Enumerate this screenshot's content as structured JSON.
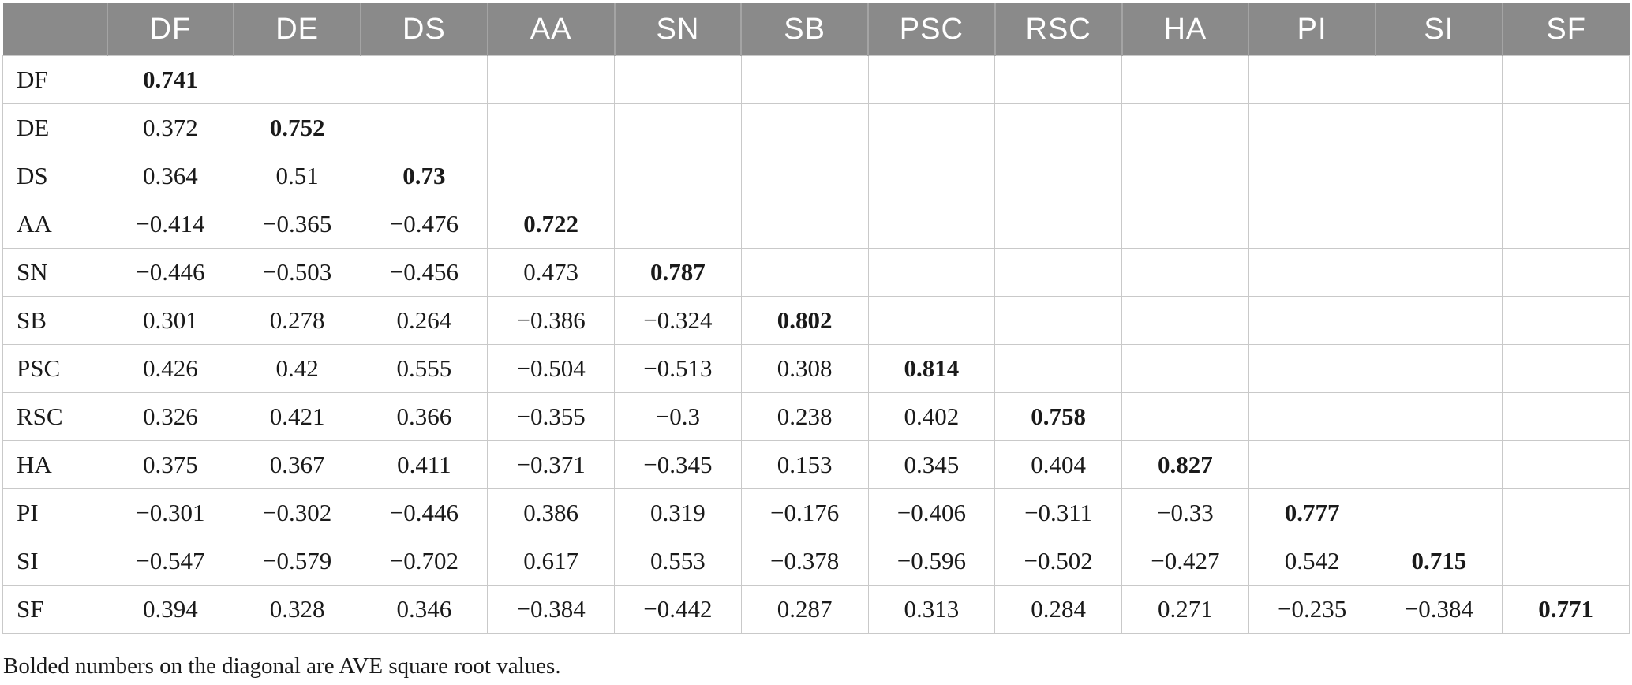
{
  "table": {
    "header": [
      "",
      "DF",
      "DE",
      "DS",
      "AA",
      "SN",
      "SB",
      "PSC",
      "RSC",
      "HA",
      "PI",
      "SI",
      "SF"
    ],
    "rows": [
      {
        "label": "DF",
        "cells": [
          "0.741",
          "",
          "",
          "",
          "",
          "",
          "",
          "",
          "",
          "",
          "",
          ""
        ]
      },
      {
        "label": "DE",
        "cells": [
          "0.372",
          "0.752",
          "",
          "",
          "",
          "",
          "",
          "",
          "",
          "",
          "",
          ""
        ]
      },
      {
        "label": "DS",
        "cells": [
          "0.364",
          "0.51",
          "0.73",
          "",
          "",
          "",
          "",
          "",
          "",
          "",
          "",
          ""
        ]
      },
      {
        "label": "AA",
        "cells": [
          "−0.414",
          "−0.365",
          "−0.476",
          "0.722",
          "",
          "",
          "",
          "",
          "",
          "",
          "",
          ""
        ]
      },
      {
        "label": "SN",
        "cells": [
          "−0.446",
          "−0.503",
          "−0.456",
          "0.473",
          "0.787",
          "",
          "",
          "",
          "",
          "",
          "",
          ""
        ]
      },
      {
        "label": "SB",
        "cells": [
          "0.301",
          "0.278",
          "0.264",
          "−0.386",
          "−0.324",
          "0.802",
          "",
          "",
          "",
          "",
          "",
          ""
        ]
      },
      {
        "label": "PSC",
        "cells": [
          "0.426",
          "0.42",
          "0.555",
          "−0.504",
          "−0.513",
          "0.308",
          "0.814",
          "",
          "",
          "",
          "",
          ""
        ]
      },
      {
        "label": "RSC",
        "cells": [
          "0.326",
          "0.421",
          "0.366",
          "−0.355",
          "−0.3",
          "0.238",
          "0.402",
          "0.758",
          "",
          "",
          "",
          ""
        ]
      },
      {
        "label": "HA",
        "cells": [
          "0.375",
          "0.367",
          "0.411",
          "−0.371",
          "−0.345",
          "0.153",
          "0.345",
          "0.404",
          "0.827",
          "",
          "",
          ""
        ]
      },
      {
        "label": "PI",
        "cells": [
          "−0.301",
          "−0.302",
          "−0.446",
          "0.386",
          "0.319",
          "−0.176",
          "−0.406",
          "−0.311",
          "−0.33",
          "0.777",
          "",
          ""
        ]
      },
      {
        "label": "SI",
        "cells": [
          "−0.547",
          "−0.579",
          "−0.702",
          "0.617",
          "0.553",
          "−0.378",
          "−0.596",
          "−0.502",
          "−0.427",
          "0.542",
          "0.715",
          ""
        ]
      },
      {
        "label": "SF",
        "cells": [
          "0.394",
          "0.328",
          "0.346",
          "−0.384",
          "−0.442",
          "0.287",
          "0.313",
          "0.284",
          "0.271",
          "−0.235",
          "−0.384",
          "0.771"
        ]
      }
    ],
    "bold_rule": "diagonal",
    "footnote": "Bolded numbers on the diagonal are AVE square root values."
  },
  "colors": {
    "header_bg": "#8a8a8a",
    "header_text": "#ffffff",
    "body_text": "#1a1a1a",
    "cell_border": "#c9c9c9",
    "header_divider": "#a4a4a4"
  }
}
